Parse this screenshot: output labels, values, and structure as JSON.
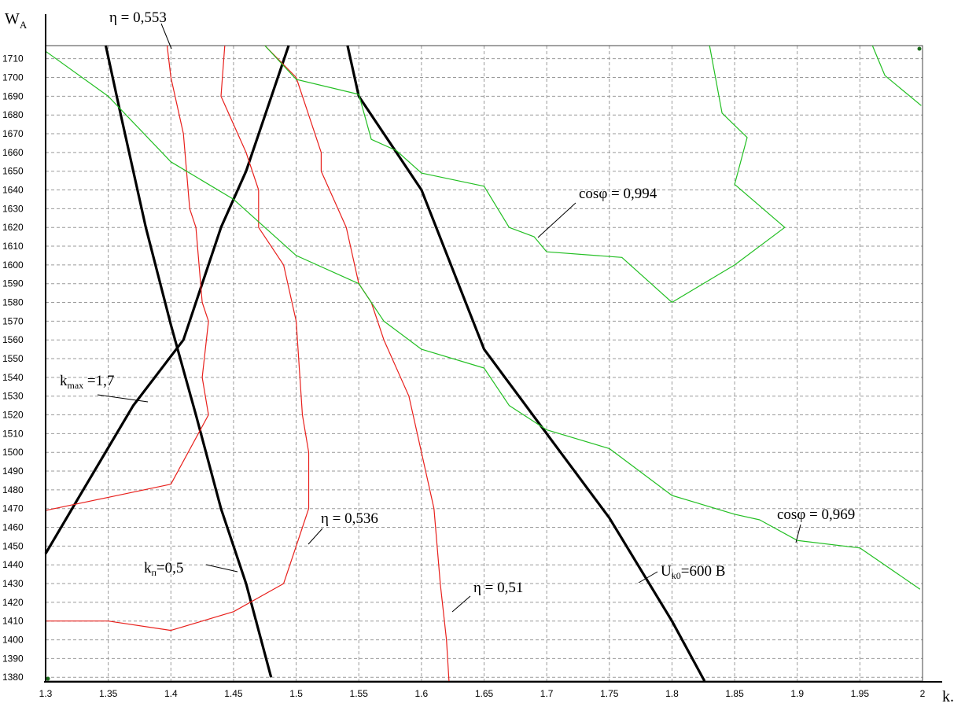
{
  "chart_data": {
    "type": "line",
    "title": "",
    "xlabel": "k",
    "xlabel_suffix": ".",
    "ylabel": "W",
    "ylabel_sub": "A",
    "xlim": [
      1.3,
      2.0
    ],
    "ylim": [
      1378,
      1717
    ],
    "x_ticks": [
      1.3,
      1.35,
      1.4,
      1.45,
      1.5,
      1.55,
      1.6,
      1.65,
      1.7,
      1.75,
      1.8,
      1.85,
      1.9,
      1.95,
      2.0
    ],
    "x_tick_labels": [
      "1.3",
      "1.35",
      "1.4",
      "1.45",
      "1.5",
      "1.55",
      "1.6",
      "1.65",
      "1.7",
      "1.75",
      "1.8",
      "1.85",
      "1.9",
      "1.95",
      "2"
    ],
    "y_ticks": [
      1380,
      1390,
      1400,
      1410,
      1420,
      1430,
      1440,
      1450,
      1460,
      1470,
      1480,
      1490,
      1500,
      1510,
      1520,
      1530,
      1540,
      1550,
      1560,
      1570,
      1580,
      1590,
      1600,
      1610,
      1620,
      1630,
      1640,
      1650,
      1660,
      1670,
      1680,
      1690,
      1700,
      1710
    ],
    "y_tick_labels": [
      "1380",
      "1390",
      "1400",
      "1410",
      "1420",
      "1430",
      "1440",
      "1450",
      "1460",
      "1470",
      "1480",
      "1490",
      "1500",
      "1510",
      "1520",
      "1530",
      "1540",
      "1550",
      "1560",
      "1570",
      "1580",
      "1590",
      "1600",
      "1610",
      "1620",
      "1630",
      "1640",
      "1650",
      "1660",
      "1670",
      "1680",
      "1690",
      "1700",
      "1710"
    ],
    "grid": true,
    "colors": {
      "black": "#000000",
      "red": "#e8201c",
      "green": "#23bf23"
    },
    "series": [
      {
        "color": "black",
        "points": [
          [
            1.348,
            1717
          ],
          [
            1.36,
            1680
          ],
          [
            1.38,
            1620
          ],
          [
            1.4,
            1568
          ],
          [
            1.42,
            1520
          ],
          [
            1.44,
            1470
          ],
          [
            1.46,
            1430
          ],
          [
            1.48,
            1380
          ]
        ]
      },
      {
        "color": "black",
        "points": [
          [
            1.3,
            1446
          ],
          [
            1.33,
            1480
          ],
          [
            1.37,
            1525
          ],
          [
            1.41,
            1560
          ],
          [
            1.44,
            1620
          ],
          [
            1.46,
            1650
          ],
          [
            1.494,
            1717
          ]
        ]
      },
      {
        "color": "black",
        "points": [
          [
            1.541,
            1717
          ],
          [
            1.55,
            1690
          ],
          [
            1.6,
            1640
          ],
          [
            1.65,
            1555
          ],
          [
            1.7,
            1510
          ],
          [
            1.75,
            1465
          ],
          [
            1.8,
            1410
          ],
          [
            1.826,
            1378
          ]
        ]
      },
      {
        "color": "red",
        "points": [
          [
            1.397,
            1717
          ],
          [
            1.4,
            1700
          ],
          [
            1.41,
            1670
          ],
          [
            1.415,
            1630
          ],
          [
            1.42,
            1620
          ],
          [
            1.425,
            1580
          ],
          [
            1.43,
            1570
          ],
          [
            1.425,
            1540
          ],
          [
            1.43,
            1520
          ],
          [
            1.4,
            1483
          ],
          [
            1.35,
            1476
          ],
          [
            1.3,
            1469
          ]
        ]
      },
      {
        "color": "red",
        "points": [
          [
            1.443,
            1717
          ],
          [
            1.44,
            1690
          ],
          [
            1.46,
            1660
          ],
          [
            1.47,
            1640
          ],
          [
            1.47,
            1620
          ],
          [
            1.49,
            1600
          ],
          [
            1.5,
            1570
          ],
          [
            1.505,
            1520
          ],
          [
            1.51,
            1500
          ],
          [
            1.51,
            1470
          ],
          [
            1.5,
            1450
          ],
          [
            1.49,
            1430
          ],
          [
            1.45,
            1415
          ],
          [
            1.4,
            1405
          ],
          [
            1.35,
            1410
          ],
          [
            1.3,
            1410
          ]
        ]
      },
      {
        "color": "red",
        "points": [
          [
            1.475,
            1717
          ],
          [
            1.5,
            1700
          ],
          [
            1.52,
            1660
          ],
          [
            1.52,
            1650
          ],
          [
            1.54,
            1620
          ],
          [
            1.55,
            1590
          ],
          [
            1.56,
            1580
          ],
          [
            1.57,
            1560
          ],
          [
            1.59,
            1530
          ],
          [
            1.6,
            1500
          ],
          [
            1.61,
            1470
          ],
          [
            1.615,
            1430
          ],
          [
            1.62,
            1400
          ],
          [
            1.622,
            1378
          ]
        ]
      },
      {
        "color": "green",
        "points": [
          [
            1.3,
            1714
          ],
          [
            1.35,
            1690
          ],
          [
            1.4,
            1655
          ],
          [
            1.45,
            1635
          ],
          [
            1.5,
            1605
          ],
          [
            1.55,
            1590
          ],
          [
            1.57,
            1570
          ],
          [
            1.6,
            1555
          ],
          [
            1.65,
            1545
          ],
          [
            1.67,
            1525
          ],
          [
            1.7,
            1512
          ],
          [
            1.75,
            1502
          ],
          [
            1.8,
            1477
          ],
          [
            1.85,
            1467
          ],
          [
            1.87,
            1464
          ],
          [
            1.9,
            1453
          ],
          [
            1.95,
            1449
          ],
          [
            1.998,
            1427
          ]
        ]
      },
      {
        "color": "green",
        "points": [
          [
            1.475,
            1717
          ],
          [
            1.5,
            1699
          ],
          [
            1.55,
            1691
          ],
          [
            1.56,
            1667
          ],
          [
            1.58,
            1661
          ],
          [
            1.6,
            1649
          ],
          [
            1.65,
            1642
          ],
          [
            1.67,
            1620
          ],
          [
            1.69,
            1615
          ],
          [
            1.7,
            1607
          ],
          [
            1.76,
            1604
          ],
          [
            1.8,
            1580
          ],
          [
            1.85,
            1600
          ],
          [
            1.89,
            1620
          ],
          [
            1.85,
            1643
          ],
          [
            1.86,
            1668
          ],
          [
            1.84,
            1681
          ],
          [
            1.83,
            1717
          ]
        ]
      },
      {
        "color": "green",
        "points": [
          [
            1.96,
            1717
          ],
          [
            1.97,
            1701
          ],
          [
            1.999,
            1685
          ]
        ]
      }
    ],
    "annotations": {
      "eta_553": "η = 0,553",
      "eta_536": "η = 0,536",
      "eta_51": "η = 0,51",
      "cos_994": "cosφ = 0,994",
      "cos_969": "cosφ = 0,969",
      "kmax_main": "k",
      "kmax_sub": "max",
      "kmax_value": " =1,7",
      "kp_main": "k",
      "kp_sub": "п",
      "kp_value": "=0,5",
      "uk0_main": "U",
      "uk0_sub": "k0",
      "uk0_value": "=600 В"
    }
  }
}
